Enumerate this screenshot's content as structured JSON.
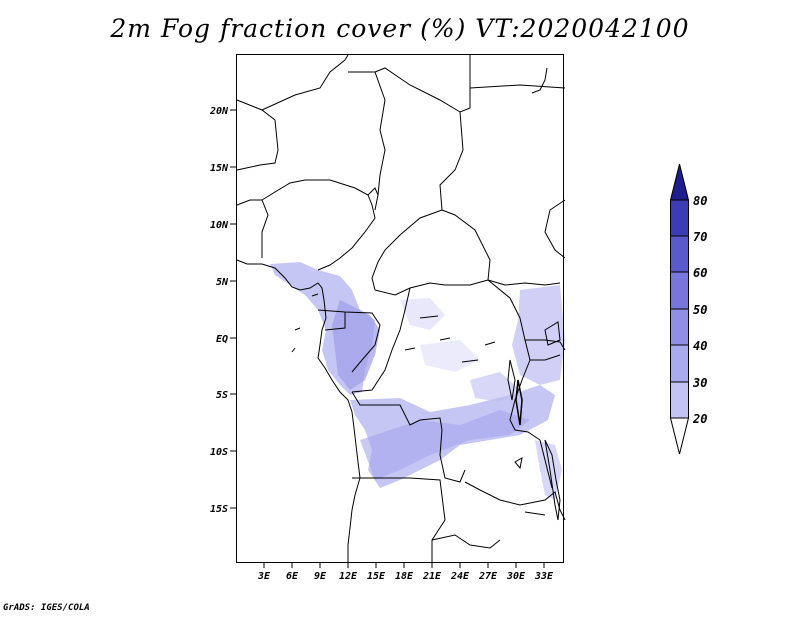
{
  "title": "2m Fog fraction cover (%) VT:2020042100",
  "credit": "GrADS: IGES/COLA",
  "map": {
    "lon_range": [
      0,
      35
    ],
    "lat_range": [
      -20,
      25
    ],
    "lat_ticks": [
      "20N",
      "15N",
      "10N",
      "5N",
      "EQ",
      "5S",
      "10S",
      "15S"
    ],
    "lon_ticks": [
      "3E",
      "6E",
      "9E",
      "12E",
      "15E",
      "18E",
      "21E",
      "24E",
      "27E",
      "30E",
      "33E"
    ]
  },
  "colorbar": {
    "levels": [
      "20",
      "30",
      "40",
      "50",
      "60",
      "70",
      "80"
    ],
    "colors": [
      "#dcdcfa",
      "#c3c3f5",
      "#a9a9ee",
      "#8f8fe6",
      "#7676dc",
      "#5a5acd",
      "#3c3cb4"
    ]
  }
}
